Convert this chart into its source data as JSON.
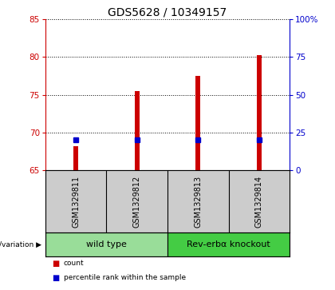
{
  "title": "GDS5628 / 10349157",
  "categories": [
    "GSM1329811",
    "GSM1329812",
    "GSM1329813",
    "GSM1329814"
  ],
  "bar_values": [
    68.2,
    75.5,
    77.5,
    80.2
  ],
  "bar_base": 65.0,
  "percentile_values": [
    20.0,
    20.0,
    20.0,
    20.0
  ],
  "ylim_left": [
    65,
    85
  ],
  "ylim_right": [
    0,
    100
  ],
  "yticks_left": [
    65,
    70,
    75,
    80,
    85
  ],
  "yticks_right": [
    0,
    25,
    50,
    75,
    100
  ],
  "ytick_labels_right": [
    "0",
    "25",
    "50",
    "75",
    "100%"
  ],
  "bar_color": "#cc0000",
  "blue_color": "#0000cc",
  "bg_color": "#ffffff",
  "sample_bg": "#cccccc",
  "groups": [
    {
      "label": "wild type",
      "indices": [
        0,
        1
      ],
      "color": "#99dd99"
    },
    {
      "label": "Rev-erbα knockout",
      "indices": [
        2,
        3
      ],
      "color": "#44cc44"
    }
  ],
  "group_row_label": "genotype/variation",
  "legend_items": [
    {
      "color": "#cc0000",
      "label": "count"
    },
    {
      "color": "#0000cc",
      "label": "percentile rank within the sample"
    }
  ],
  "title_fontsize": 10,
  "tick_fontsize": 7.5,
  "label_fontsize": 7,
  "group_label_fontsize": 8,
  "sample_label_fontsize": 7
}
